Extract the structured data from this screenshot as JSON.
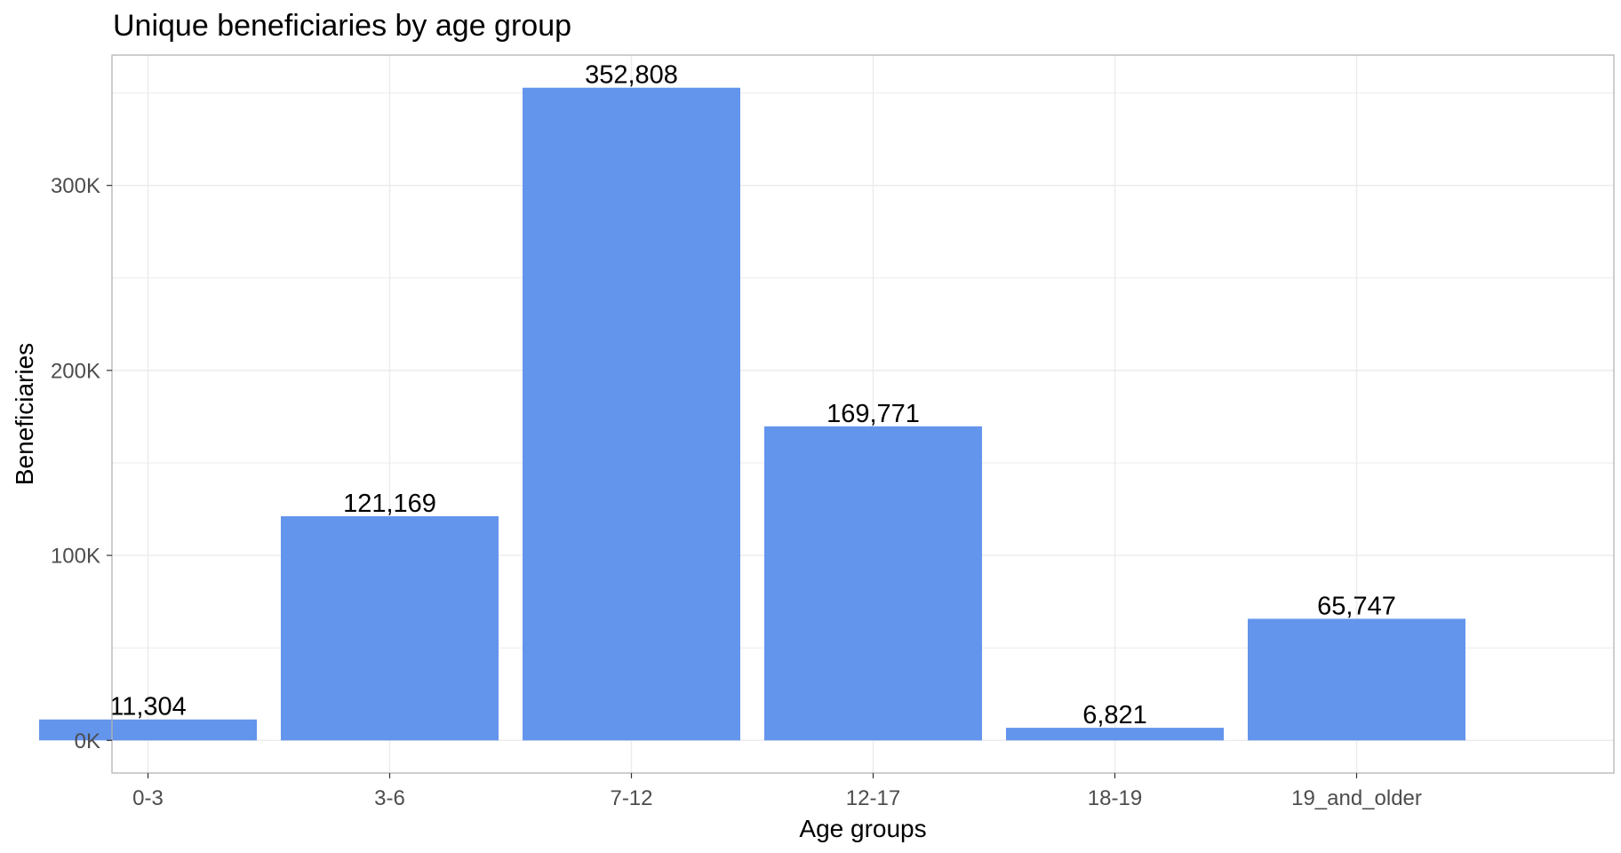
{
  "chart_data": {
    "type": "bar",
    "title": "Unique beneficiaries by age group",
    "xlabel": "Age groups",
    "ylabel": "Beneficiaries",
    "categories": [
      "0-3",
      "3-6",
      "7-12",
      "12-17",
      "18-19",
      "19_and_older"
    ],
    "values": [
      11304,
      121169,
      352808,
      169771,
      6821,
      65747
    ],
    "data_labels": [
      "11,304",
      "121,169",
      "352,808",
      "169,771",
      "6,821",
      "65,747"
    ],
    "y_ticks": [
      0,
      100000,
      200000,
      300000
    ],
    "y_tick_labels": [
      "0K",
      "100K",
      "200K",
      "300K"
    ],
    "ylim": [
      -17640,
      370448
    ],
    "grid": true,
    "legend": "none",
    "bar_color": "#6495ED",
    "gridline_color": "#EBEBEB",
    "panel_border_color": "#B3B3B3"
  }
}
